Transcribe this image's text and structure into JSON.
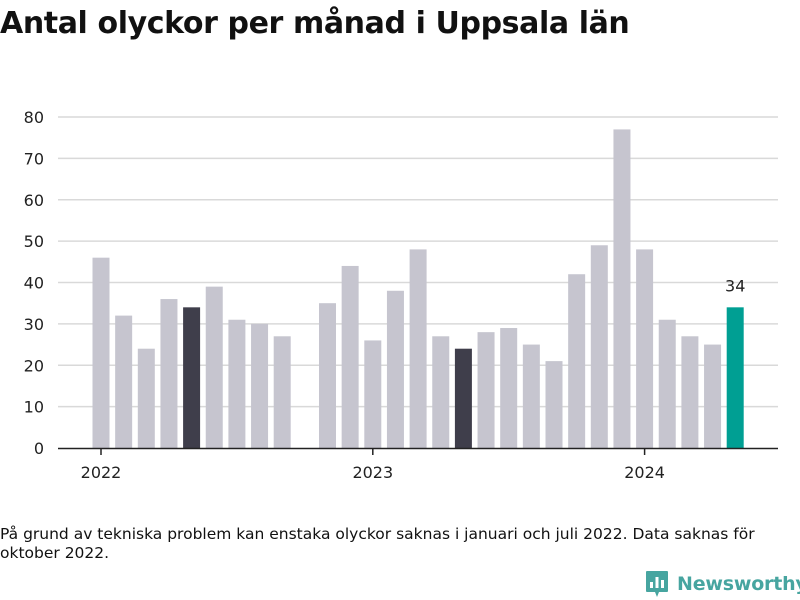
{
  "chart_data": {
    "type": "bar",
    "title": "Antal olyckor per månad i Uppsala län",
    "xlabel": "",
    "ylabel": "",
    "ylim": [
      0,
      80
    ],
    "yticks": [
      0,
      10,
      20,
      30,
      40,
      50,
      60,
      70,
      80
    ],
    "grid": true,
    "x_tick_labels": [
      {
        "label": "2022",
        "category": "2022-01"
      },
      {
        "label": "2023",
        "category": "2023-01"
      },
      {
        "label": "2024",
        "category": "2024-01"
      }
    ],
    "categories": [
      "2022-01",
      "2022-02",
      "2022-03",
      "2022-04",
      "2022-05",
      "2022-06",
      "2022-07",
      "2022-08",
      "2022-09",
      "2022-10",
      "2022-11",
      "2022-12",
      "2023-01",
      "2023-02",
      "2023-03",
      "2023-04",
      "2023-05",
      "2023-06",
      "2023-07",
      "2023-08",
      "2023-09",
      "2023-10",
      "2023-11",
      "2023-12",
      "2024-01",
      "2024-02",
      "2024-03",
      "2024-04",
      "2024-05"
    ],
    "values": [
      46,
      32,
      24,
      36,
      34,
      39,
      31,
      30,
      27,
      null,
      35,
      44,
      26,
      38,
      48,
      27,
      24,
      28,
      29,
      25,
      21,
      42,
      49,
      77,
      48,
      31,
      27,
      25,
      34
    ],
    "highlight": [
      {
        "category": "2022-05",
        "color": "#3f3e4b"
      },
      {
        "category": "2023-05",
        "color": "#3f3e4b"
      },
      {
        "category": "2024-05",
        "color": "#009f93",
        "label": "34"
      }
    ],
    "colors": {
      "default_bar": "#c6c5cf",
      "highlight_previous": "#3f3e4b",
      "highlight_current": "#009f93",
      "grid": "#d9d9d9",
      "axis": "#222222"
    }
  },
  "footnote": "På grund av tekniska problem kan enstaka olyckor saknas i januari och juli 2022. Data saknas för oktober 2022.",
  "brand": {
    "name": "Newsworthy",
    "icon": "newsworthy-logo-icon",
    "color": "#47a5a0"
  }
}
